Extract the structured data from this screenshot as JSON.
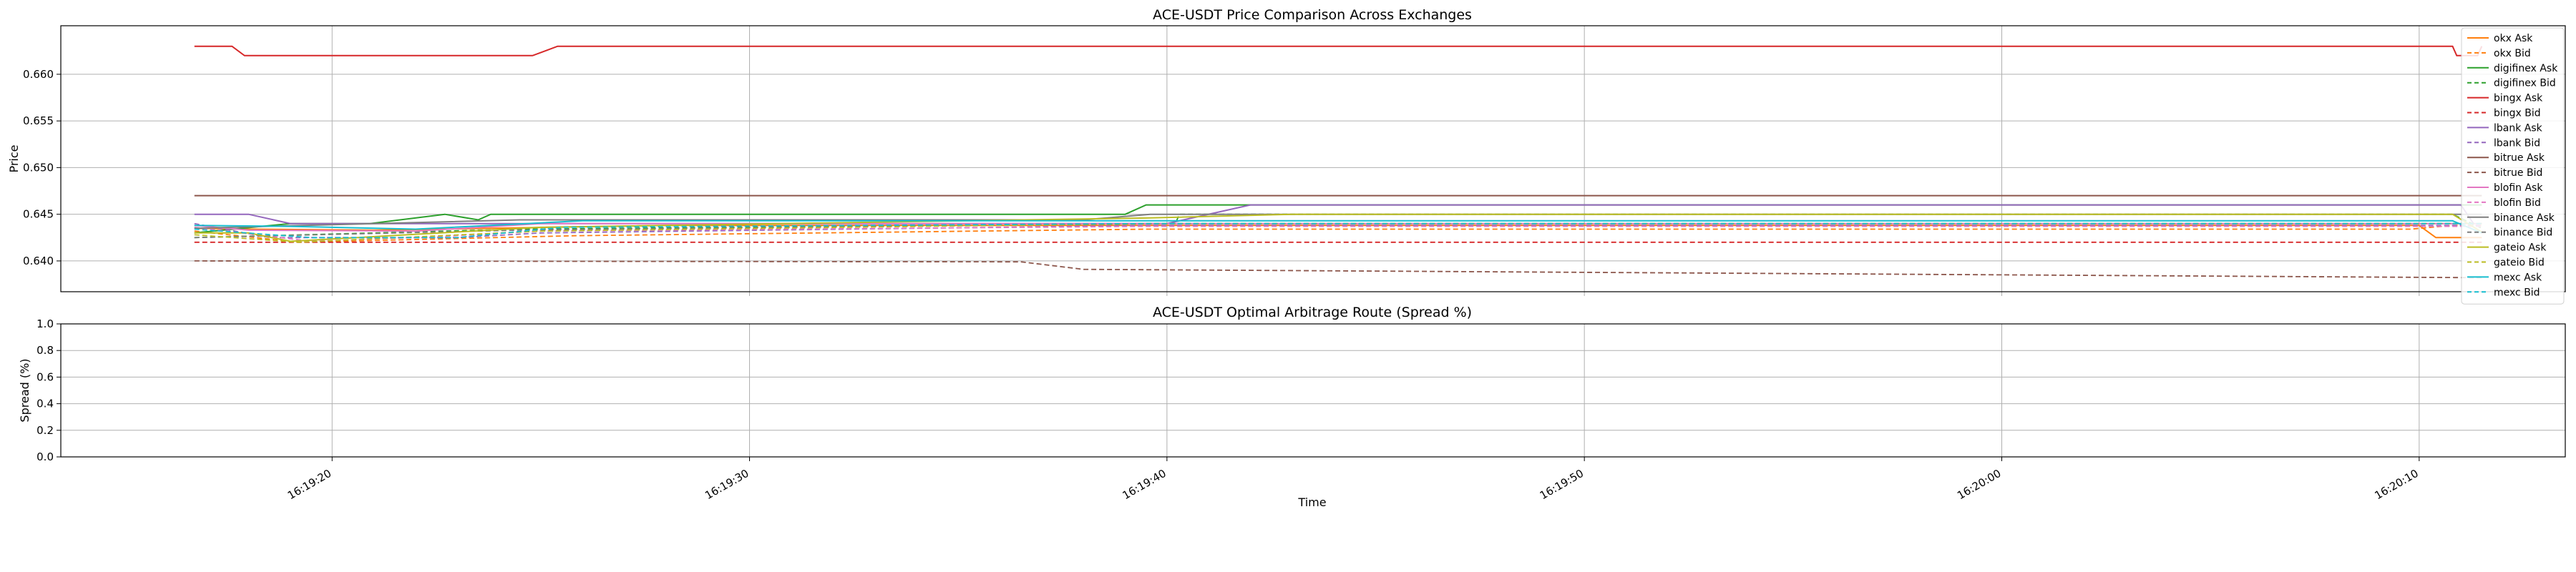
{
  "chart_data": [
    {
      "type": "line",
      "title": "ACE-USDT Price Comparison Across Exchanges",
      "xlabel": "",
      "ylabel": "Price",
      "x_range": [
        "16:19:13.5",
        "16:20:13.5"
      ],
      "ylim": [
        0.6367,
        0.6652
      ],
      "yticks": [
        0.64,
        0.645,
        0.65,
        0.655,
        0.66
      ],
      "ytick_labels": [
        "0.640",
        "0.645",
        "0.650",
        "0.655",
        "0.660"
      ],
      "grid": true,
      "legend_position": "right",
      "series": [
        {
          "name": "okx Ask",
          "color": "#ff7f0e",
          "dash": false,
          "points": [
            [
              "16:19:16.7",
              0.6435
            ],
            [
              "16:19:18.0",
              0.6434
            ],
            [
              "16:19:21.0",
              0.6433
            ],
            [
              "16:19:28.0",
              0.6438
            ],
            [
              "16:20:10.0",
              0.6438
            ],
            [
              "16:20:10.4",
              0.6425
            ],
            [
              "16:20:11.5",
              0.6425
            ]
          ]
        },
        {
          "name": "okx Bid",
          "color": "#ff7f0e",
          "dash": true,
          "points": [
            [
              "16:19:16.7",
              0.6432
            ],
            [
              "16:19:19.2",
              0.642
            ],
            [
              "16:19:25.8",
              0.6427
            ],
            [
              "16:19:39.5",
              0.6434
            ],
            [
              "16:20:09.8",
              0.6434
            ],
            [
              "16:20:10.8",
              0.6438
            ],
            [
              "16:20:11.5",
              0.6438
            ]
          ]
        },
        {
          "name": "digifinex Ask",
          "color": "#2ca02c",
          "dash": false,
          "points": [
            [
              "16:19:16.7",
              0.643
            ],
            [
              "16:19:19.0",
              0.644
            ],
            [
              "16:19:20.9",
              0.644
            ],
            [
              "16:19:22.7",
              0.645
            ],
            [
              "16:19:23.5",
              0.6444
            ],
            [
              "16:19:23.8",
              0.645
            ],
            [
              "16:19:39.0",
              0.645
            ],
            [
              "16:19:39.5",
              0.646
            ],
            [
              "16:20:11.5",
              0.646
            ]
          ]
        },
        {
          "name": "digifinex Bid",
          "color": "#2ca02c",
          "dash": true,
          "points": [
            [
              "16:19:16.7",
              0.6425
            ],
            [
              "16:19:24.5",
              0.6434
            ],
            [
              "16:19:40.2",
              0.644
            ],
            [
              "16:19:40.3",
              0.645
            ],
            [
              "16:20:10.8",
              0.645
            ],
            [
              "16:20:11.5",
              0.6435
            ]
          ]
        },
        {
          "name": "bingx Ask",
          "color": "#d62728",
          "dash": false,
          "points": [
            [
              "16:19:16.7",
              0.663
            ],
            [
              "16:19:17.6",
              0.663
            ],
            [
              "16:19:17.9",
              0.662
            ],
            [
              "16:19:24.8",
              0.662
            ],
            [
              "16:19:25.4",
              0.663
            ],
            [
              "16:20:10.8",
              0.663
            ],
            [
              "16:20:10.9",
              0.662
            ],
            [
              "16:20:11.4",
              0.662
            ],
            [
              "16:20:11.5",
              0.663
            ]
          ]
        },
        {
          "name": "bingx Bid",
          "color": "#d62728",
          "dash": true,
          "points": [
            [
              "16:19:16.7",
              0.642
            ],
            [
              "16:20:11.5",
              0.642
            ]
          ]
        },
        {
          "name": "lbank Ask",
          "color": "#9467bd",
          "dash": false,
          "points": [
            [
              "16:19:16.7",
              0.645
            ],
            [
              "16:19:18.0",
              0.645
            ],
            [
              "16:19:19.0",
              0.644
            ],
            [
              "16:19:40.0",
              0.644
            ],
            [
              "16:19:42.0",
              0.646
            ],
            [
              "16:20:11.0",
              0.646
            ],
            [
              "16:20:11.3",
              0.644
            ]
          ]
        },
        {
          "name": "lbank Bid",
          "color": "#9467bd",
          "dash": true,
          "points": [
            [
              "16:19:16.7",
              0.644
            ],
            [
              "16:19:18.5",
              0.6425
            ],
            [
              "16:19:23.0",
              0.6425
            ],
            [
              "16:19:25.0",
              0.643
            ],
            [
              "16:19:39.5",
              0.6438
            ],
            [
              "16:20:11.5",
              0.6438
            ]
          ]
        },
        {
          "name": "bitrue Ask",
          "color": "#8c564b",
          "dash": false,
          "points": [
            [
              "16:19:16.7",
              0.647
            ],
            [
              "16:20:11.5",
              0.647
            ]
          ]
        },
        {
          "name": "bitrue Bid",
          "color": "#8c564b",
          "dash": true,
          "points": [
            [
              "16:19:16.7",
              0.64
            ],
            [
              "16:19:36.5",
              0.6399
            ],
            [
              "16:19:38.0",
              0.6391
            ],
            [
              "16:20:11.5",
              0.6382
            ]
          ]
        },
        {
          "name": "blofin Ask",
          "color": "#e377c2",
          "dash": false,
          "points": [
            [
              "16:19:16.7",
              0.6438
            ],
            [
              "16:19:18.0",
              0.6433
            ],
            [
              "16:19:22.0",
              0.6432
            ],
            [
              "16:19:25.0",
              0.644
            ],
            [
              "16:20:11.5",
              0.644
            ]
          ]
        },
        {
          "name": "blofin Bid",
          "color": "#e377c2",
          "dash": true,
          "points": [
            [
              "16:19:16.7",
              0.6436
            ],
            [
              "16:19:19.5",
              0.6421
            ],
            [
              "16:19:22.5",
              0.6426
            ],
            [
              "16:19:25.0",
              0.6432
            ],
            [
              "16:19:39.5",
              0.6437
            ],
            [
              "16:20:11.5",
              0.6437
            ]
          ]
        },
        {
          "name": "binance Ask",
          "color": "#7f7f7f",
          "dash": false,
          "points": [
            [
              "16:19:16.7",
              0.6435
            ],
            [
              "16:19:24.5",
              0.6444
            ],
            [
              "16:19:38.0",
              0.6444
            ],
            [
              "16:19:39.6",
              0.645
            ],
            [
              "16:20:11.5",
              0.645
            ]
          ]
        },
        {
          "name": "binance Bid",
          "color": "#7f7f7f",
          "dash": true,
          "points": [
            [
              "16:19:16.7",
              0.6425
            ],
            [
              "16:19:24.5",
              0.6433
            ],
            [
              "16:19:39.5",
              0.644
            ],
            [
              "16:20:11.5",
              0.644
            ]
          ]
        },
        {
          "name": "gateio Ask",
          "color": "#bcbd22",
          "dash": false,
          "points": [
            [
              "16:19:16.7",
              0.643
            ],
            [
              "16:19:18.0",
              0.643
            ],
            [
              "16:19:19.0",
              0.6421
            ],
            [
              "16:19:25.0",
              0.6436
            ],
            [
              "16:19:39.5",
              0.6446
            ],
            [
              "16:19:43.0",
              0.645
            ],
            [
              "16:20:10.8",
              0.645
            ],
            [
              "16:20:11.5",
              0.6431
            ]
          ]
        },
        {
          "name": "gateio Bid",
          "color": "#bcbd22",
          "dash": true,
          "points": [
            [
              "16:19:16.7",
              0.6428
            ],
            [
              "16:19:19.2",
              0.642
            ],
            [
              "16:19:25.0",
              0.6432
            ],
            [
              "16:19:39.5",
              0.644
            ],
            [
              "16:20:11.5",
              0.644
            ]
          ]
        },
        {
          "name": "mexc Ask",
          "color": "#17becf",
          "dash": false,
          "points": [
            [
              "16:19:16.7",
              0.6438
            ],
            [
              "16:19:19.0",
              0.6437
            ],
            [
              "16:19:22.0",
              0.6434
            ],
            [
              "16:19:26.0",
              0.6443
            ],
            [
              "16:20:10.8",
              0.6443
            ],
            [
              "16:20:11.5",
              0.643
            ]
          ]
        },
        {
          "name": "mexc Bid",
          "color": "#17becf",
          "dash": true,
          "points": [
            [
              "16:19:16.7",
              0.6434
            ],
            [
              "16:19:19.5",
              0.6425
            ],
            [
              "16:19:23.0",
              0.6425
            ],
            [
              "16:19:25.5",
              0.6436
            ],
            [
              "16:19:39.5",
              0.644
            ],
            [
              "16:20:11.5",
              0.644
            ]
          ]
        }
      ]
    },
    {
      "type": "line",
      "title": "ACE-USDT Optimal Arbitrage Route (Spread %)",
      "xlabel": "Time",
      "ylabel": "Spread (%)",
      "ylim": [
        0.0,
        1.0
      ],
      "yticks": [
        0.0,
        0.2,
        0.4,
        0.6,
        0.8,
        1.0
      ],
      "ytick_labels": [
        "0.0",
        "0.2",
        "0.4",
        "0.6",
        "0.8",
        "1.0"
      ],
      "xticks": [
        "16:19:20",
        "16:19:30",
        "16:19:40",
        "16:19:50",
        "16:20:00",
        "16:20:10"
      ],
      "xtick_labels": [
        "16:19:20",
        "16:19:30",
        "16:19:40",
        "16:19:50",
        "16:20:00",
        "16:20:10"
      ],
      "grid": true,
      "series": []
    }
  ]
}
